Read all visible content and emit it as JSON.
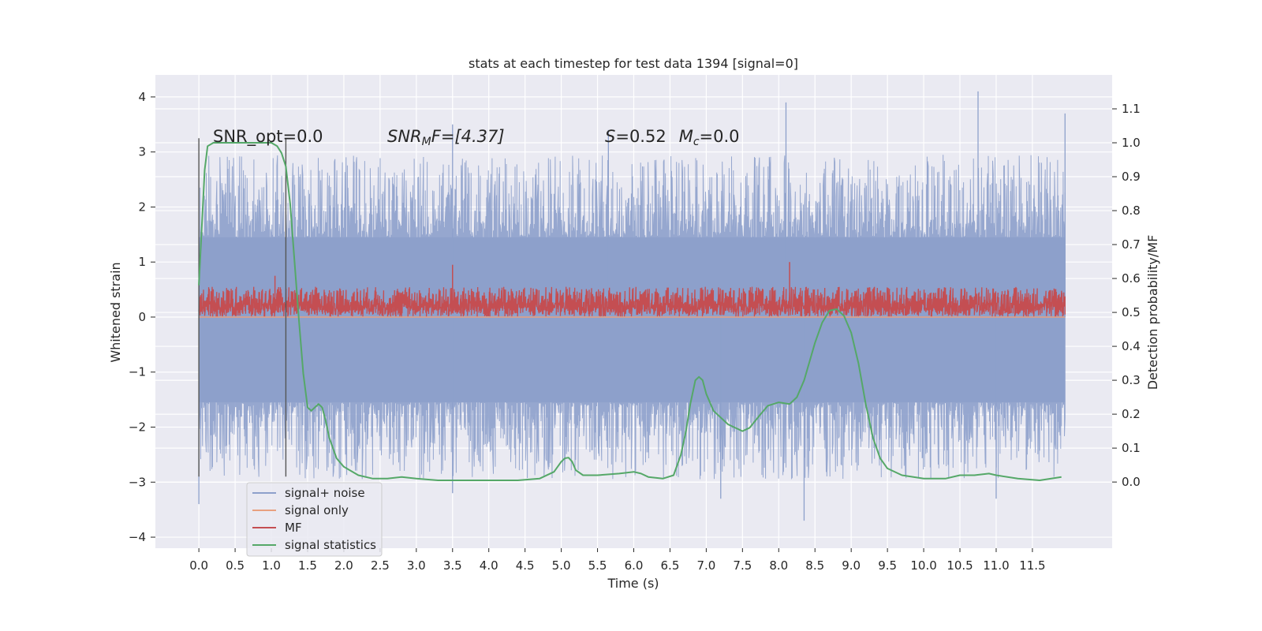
{
  "chart_data": {
    "type": "line",
    "title": "stats at each timestep for test data 1394 [signal=0]",
    "xlabel": "Time (s)",
    "ylabel": "Whitened strain",
    "ylabel_right": "Detection probability/MF",
    "xlim": [
      -0.6,
      12.6
    ],
    "ylim": [
      -4.2,
      4.4
    ],
    "ylim_right": [
      -0.195,
      1.2
    ],
    "x_ticks": [
      "0.0",
      "0.5",
      "1.0",
      "1.5",
      "2.0",
      "2.5",
      "3.0",
      "3.5",
      "4.0",
      "4.5",
      "5.0",
      "5.5",
      "6.0",
      "6.5",
      "7.0",
      "7.5",
      "8.0",
      "8.5",
      "9.0",
      "9.5",
      "10.0",
      "10.5",
      "11.0",
      "11.5"
    ],
    "y_ticks": [
      "4",
      "3",
      "2",
      "1",
      "0",
      "−1",
      "−2",
      "−3",
      "−4"
    ],
    "y_ticks_right": [
      "1.1",
      "1.0",
      "0.9",
      "0.8",
      "0.7",
      "0.6",
      "0.5",
      "0.4",
      "0.3",
      "0.2",
      "0.1",
      "0.0"
    ],
    "annotations": {
      "snr_opt": "SNR_opt=0.0",
      "snr_mf_prefix": "SNR",
      "snr_mf_sub": "M",
      "snr_mf_suffix": "F=[4.37]",
      "s_prefix": "S",
      "s_value": "=0.52",
      "mc_prefix": "M",
      "mc_sub": "c",
      "mc_value": "=0.0"
    },
    "legend": {
      "position": "lower-left",
      "entries": [
        {
          "label": "signal+ noise",
          "color": "#8da0cb"
        },
        {
          "label": "signal only",
          "color": "#e8a07f"
        },
        {
          "label": "MF",
          "color": "#c44e52"
        },
        {
          "label": "signal statistics",
          "color": "#55a868"
        }
      ]
    },
    "vertical_markers": [
      {
        "x": 0.0,
        "y_range": [
          -2.9,
          3.25
        ]
      },
      {
        "x": 1.2,
        "y_range": [
          -2.9,
          3.25
        ]
      }
    ],
    "series": [
      {
        "name": "signal statistics",
        "axis": "right",
        "color": "#55a868",
        "x": [
          0.0,
          0.04,
          0.08,
          0.12,
          0.2,
          0.3,
          0.5,
          0.8,
          1.0,
          1.08,
          1.14,
          1.2,
          1.26,
          1.32,
          1.38,
          1.44,
          1.5,
          1.55,
          1.6,
          1.65,
          1.7,
          1.75,
          1.8,
          1.9,
          2.0,
          2.2,
          2.4,
          2.6,
          2.8,
          3.0,
          3.3,
          3.6,
          4.0,
          4.4,
          4.7,
          4.9,
          5.0,
          5.05,
          5.1,
          5.15,
          5.2,
          5.3,
          5.5,
          5.8,
          6.0,
          6.1,
          6.2,
          6.4,
          6.55,
          6.65,
          6.72,
          6.78,
          6.85,
          6.9,
          6.95,
          7.0,
          7.1,
          7.3,
          7.5,
          7.6,
          7.75,
          7.85,
          8.0,
          8.15,
          8.25,
          8.35,
          8.5,
          8.6,
          8.7,
          8.8,
          8.9,
          9.0,
          9.1,
          9.2,
          9.3,
          9.4,
          9.5,
          9.7,
          10.0,
          10.3,
          10.5,
          10.7,
          10.9,
          11.0,
          11.3,
          11.6,
          11.9
        ],
        "y": [
          0.58,
          0.75,
          0.92,
          0.99,
          1.0,
          1.0,
          1.0,
          1.0,
          1.0,
          0.99,
          0.97,
          0.93,
          0.82,
          0.65,
          0.48,
          0.32,
          0.22,
          0.21,
          0.22,
          0.23,
          0.22,
          0.18,
          0.13,
          0.07,
          0.045,
          0.02,
          0.01,
          0.01,
          0.015,
          0.01,
          0.005,
          0.005,
          0.005,
          0.005,
          0.01,
          0.03,
          0.06,
          0.07,
          0.072,
          0.06,
          0.035,
          0.02,
          0.02,
          0.025,
          0.03,
          0.025,
          0.015,
          0.01,
          0.02,
          0.08,
          0.15,
          0.23,
          0.3,
          0.31,
          0.3,
          0.26,
          0.21,
          0.17,
          0.15,
          0.16,
          0.2,
          0.225,
          0.235,
          0.23,
          0.25,
          0.3,
          0.41,
          0.47,
          0.505,
          0.51,
          0.49,
          0.44,
          0.35,
          0.23,
          0.13,
          0.07,
          0.04,
          0.02,
          0.01,
          0.01,
          0.02,
          0.02,
          0.025,
          0.02,
          0.01,
          0.005,
          0.015
        ]
      },
      {
        "name": "signal+ noise",
        "axis": "left",
        "color": "#8da0cb",
        "x_range": [
          0.0,
          11.95
        ],
        "typical_range": [
          -1.55,
          1.45
        ],
        "peaks": [
          {
            "x": 0.0,
            "y": -3.4
          },
          {
            "x": 3.5,
            "y": 3.5
          },
          {
            "x": 3.5,
            "y": -3.2
          },
          {
            "x": 5.65,
            "y": 3.4
          },
          {
            "x": 7.2,
            "y": -3.3
          },
          {
            "x": 8.1,
            "y": 3.9
          },
          {
            "x": 8.35,
            "y": -3.7
          },
          {
            "x": 10.75,
            "y": 4.1
          },
          {
            "x": 11.0,
            "y": -3.3
          },
          {
            "x": 11.95,
            "y": 3.7
          }
        ]
      },
      {
        "name": "MF",
        "axis": "left",
        "color": "#c44e52",
        "x_range": [
          0.0,
          11.95
        ],
        "typical_range": [
          0.0,
          0.55
        ],
        "peaks": [
          {
            "x": 1.05,
            "y": 0.75
          },
          {
            "x": 3.5,
            "y": 0.95
          },
          {
            "x": 8.15,
            "y": 1.0
          }
        ]
      },
      {
        "name": "signal only",
        "axis": "left",
        "color": "#e8a07f",
        "x": [
          0.0,
          11.95
        ],
        "y": [
          0.0,
          0.0
        ]
      }
    ]
  }
}
